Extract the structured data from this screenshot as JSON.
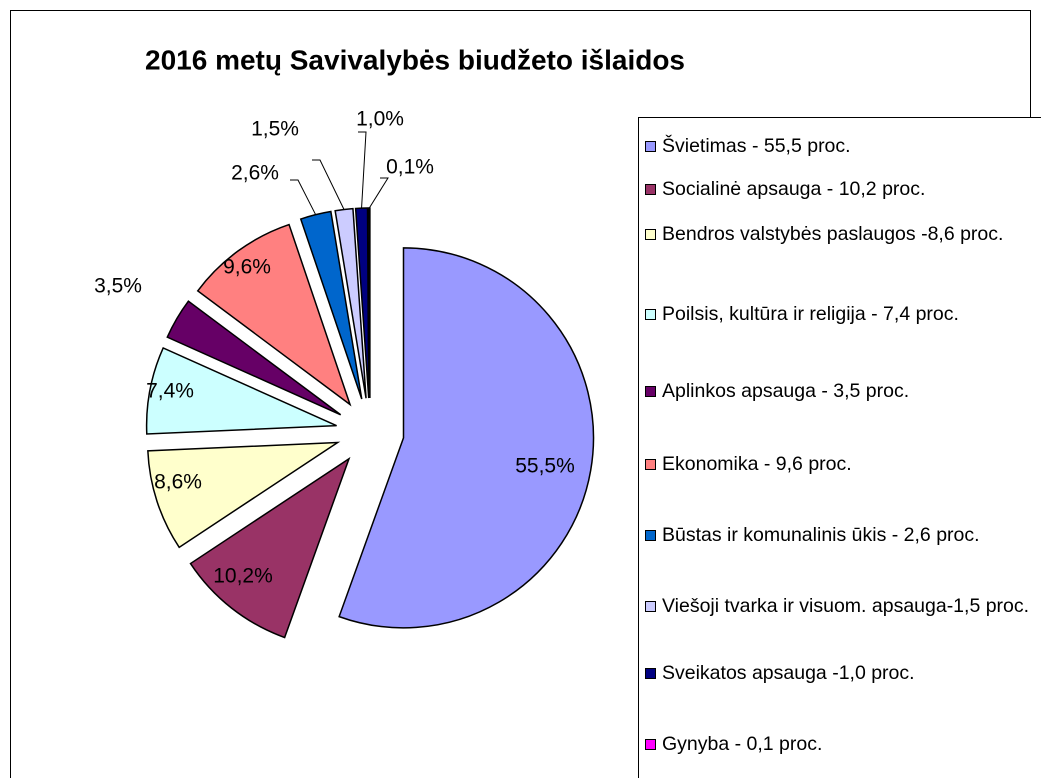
{
  "chart_data": {
    "type": "pie",
    "title": "2016 metų Savivalybės biudžeto išlaidos",
    "categories": [
      "Švietimas - 55,5 proc.",
      "Socialinė apsauga - 10,2 proc.",
      "Bendros valstybės paslaugos -8,6 proc.",
      "Poilsis, kultūra ir religija - 7,4 proc.",
      "Aplinkos apsauga - 3,5 proc.",
      "Ekonomika - 9,6 proc.",
      "Būstas ir komunalinis ūkis - 2,6 proc.",
      "Viešoji tvarka ir visuom. apsauga-1,5 proc.",
      "Sveikatos apsauga -1,0 proc.",
      "Gynyba - 0,1 proc."
    ],
    "values": [
      55.5,
      10.2,
      8.6,
      7.4,
      3.5,
      9.6,
      2.6,
      1.5,
      1.0,
      0.1
    ],
    "value_labels": [
      "55,5%",
      "10,2%",
      "8,6%",
      "7,4%",
      "3,5%",
      "9,6%",
      "2,6%",
      "1,5%",
      "1,0%",
      "0,1%"
    ],
    "colors": [
      "#9999ff",
      "#993366",
      "#ffffcc",
      "#ccffff",
      "#660066",
      "#ff8080",
      "#0066cc",
      "#ccccff",
      "#000080",
      "#ff00ff"
    ],
    "legend": "right"
  }
}
